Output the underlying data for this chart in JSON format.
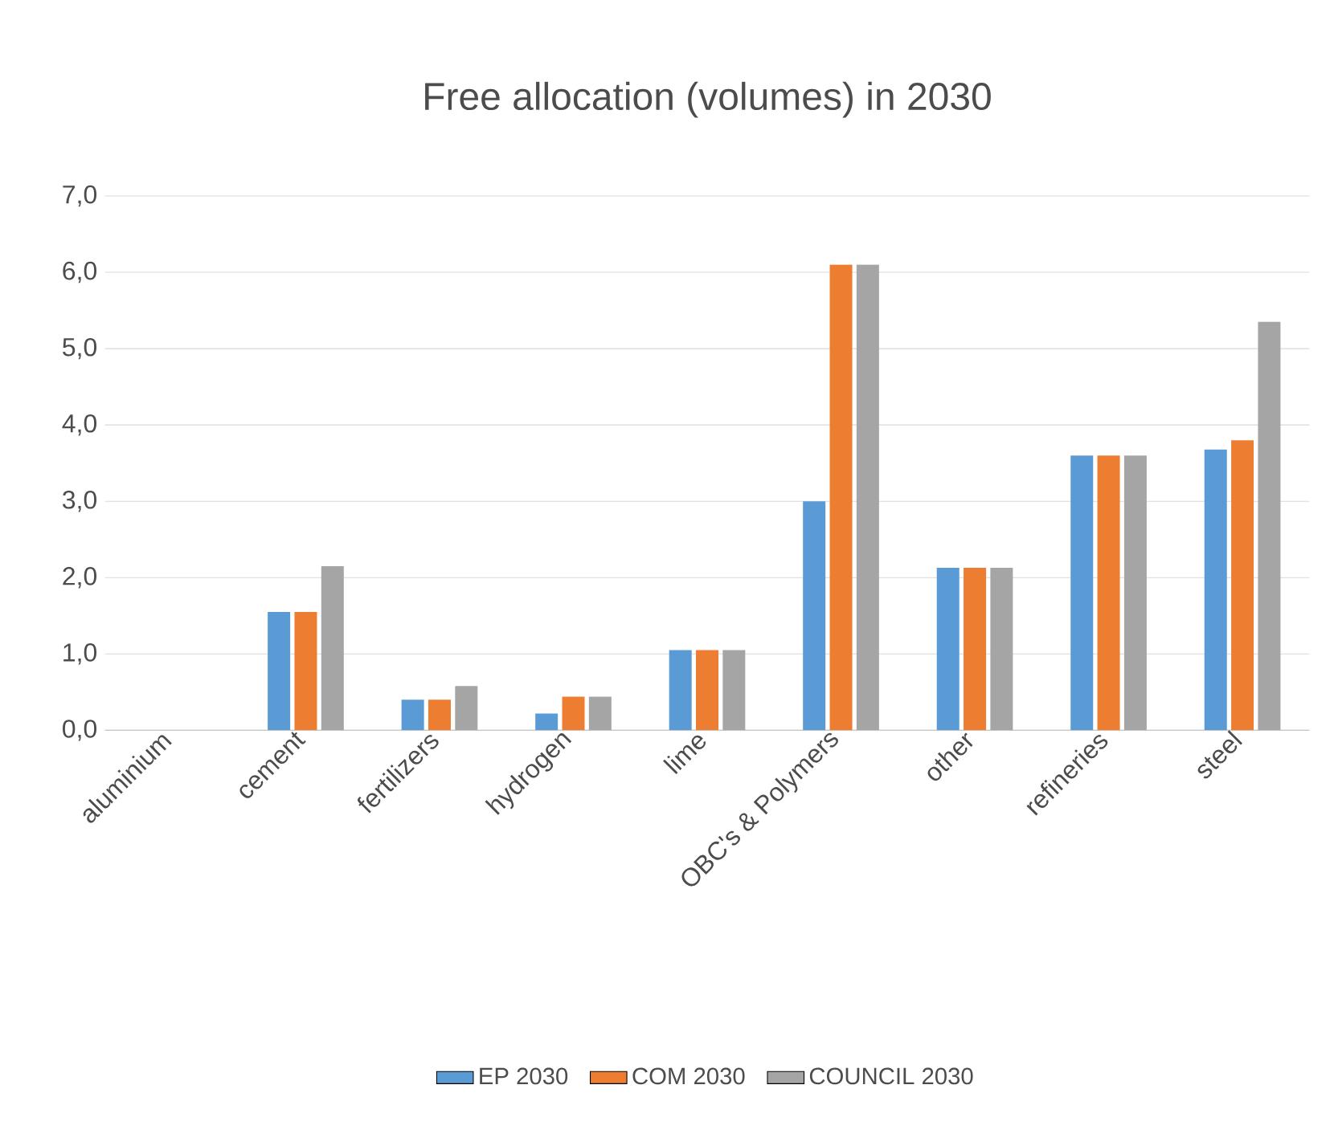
{
  "chart_data": {
    "type": "bar",
    "title": "Free allocation (volumes) in 2030",
    "categories": [
      "aluminium",
      "cement",
      "fertilizers",
      "hydrogen",
      "lime",
      "OBC's & Polymers",
      "other",
      "refineries",
      "steel"
    ],
    "series": [
      {
        "name": "EP 2030",
        "color": "#5b9bd5",
        "values": [
          0,
          1.55,
          0.4,
          0.22,
          1.05,
          3.0,
          2.13,
          3.6,
          3.68
        ]
      },
      {
        "name": "COM 2030",
        "color": "#ed7d31",
        "values": [
          0,
          1.55,
          0.4,
          0.44,
          1.05,
          6.1,
          2.13,
          3.6,
          3.8
        ]
      },
      {
        "name": "COUNCIL 2030",
        "color": "#a5a5a5",
        "values": [
          0,
          2.15,
          0.58,
          0.44,
          1.05,
          6.1,
          2.13,
          3.6,
          5.35
        ]
      }
    ],
    "ylim": [
      0,
      7
    ],
    "yticks": [
      {
        "value": 0,
        "label": "0,0"
      },
      {
        "value": 1,
        "label": "1,0"
      },
      {
        "value": 2,
        "label": "2,0"
      },
      {
        "value": 3,
        "label": "3,0"
      },
      {
        "value": 4,
        "label": "4,0"
      },
      {
        "value": 5,
        "label": "5,0"
      },
      {
        "value": 6,
        "label": "6,0"
      },
      {
        "value": 7,
        "label": "7,0"
      }
    ],
    "grid": "y",
    "legend": "bottom"
  }
}
